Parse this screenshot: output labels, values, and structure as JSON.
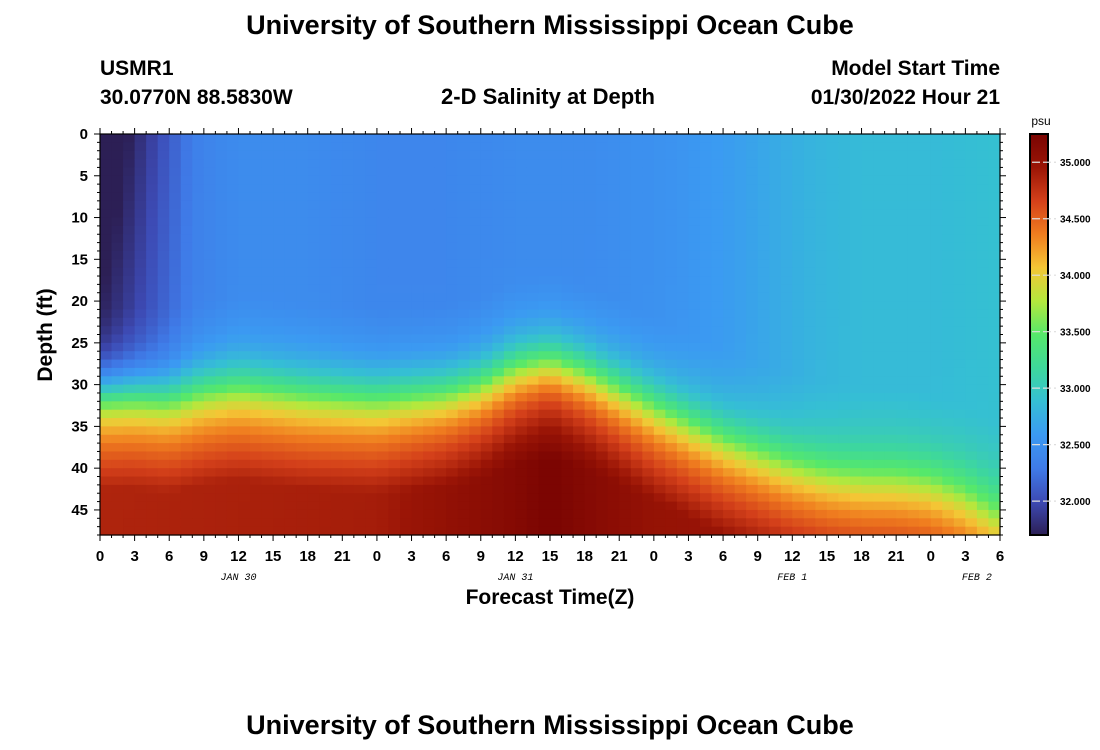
{
  "header": {
    "title": "University of Southern Mississippi Ocean Cube",
    "station_id": "USMR1",
    "coordinates": "30.0770N  88.5830W",
    "subtitle": "2-D Salinity at Depth",
    "model_start_label": "Model Start Time",
    "model_start_value": "01/30/2022 Hour 21"
  },
  "footer": {
    "title": "University of Southern Mississippi Ocean Cube"
  },
  "colors": {
    "ramp": [
      "#2c1f55",
      "#3d4ab4",
      "#3f7be8",
      "#3b9af2",
      "#35bfd4",
      "#3ed89b",
      "#56e86a",
      "#b4e83d",
      "#f4c635",
      "#f07d1f",
      "#d4401a",
      "#9a1506",
      "#7a0402"
    ]
  },
  "chart_data": {
    "type": "heatmap",
    "title": "2-D Salinity at Depth",
    "xlabel": "Forecast Time(Z)",
    "ylabel": "Depth (ft)",
    "x_range_hours": [
      0,
      78
    ],
    "y_range_ft": [
      0,
      48
    ],
    "x_ticks": [
      {
        "hour": 0,
        "label": "0"
      },
      {
        "hour": 3,
        "label": "3"
      },
      {
        "hour": 6,
        "label": "6"
      },
      {
        "hour": 9,
        "label": "9"
      },
      {
        "hour": 12,
        "label": "12"
      },
      {
        "hour": 15,
        "label": "15"
      },
      {
        "hour": 18,
        "label": "18"
      },
      {
        "hour": 21,
        "label": "21"
      },
      {
        "hour": 24,
        "label": "0"
      },
      {
        "hour": 27,
        "label": "3"
      },
      {
        "hour": 30,
        "label": "6"
      },
      {
        "hour": 33,
        "label": "9"
      },
      {
        "hour": 36,
        "label": "12"
      },
      {
        "hour": 39,
        "label": "15"
      },
      {
        "hour": 42,
        "label": "18"
      },
      {
        "hour": 45,
        "label": "21"
      },
      {
        "hour": 48,
        "label": "0"
      },
      {
        "hour": 51,
        "label": "3"
      },
      {
        "hour": 54,
        "label": "6"
      },
      {
        "hour": 57,
        "label": "9"
      },
      {
        "hour": 60,
        "label": "12"
      },
      {
        "hour": 63,
        "label": "15"
      },
      {
        "hour": 66,
        "label": "18"
      },
      {
        "hour": 69,
        "label": "21"
      },
      {
        "hour": 72,
        "label": "0"
      },
      {
        "hour": 75,
        "label": "3"
      },
      {
        "hour": 78,
        "label": "6"
      }
    ],
    "y_ticks": [
      {
        "depth": 0,
        "label": "0"
      },
      {
        "depth": 5,
        "label": "5"
      },
      {
        "depth": 10,
        "label": "10"
      },
      {
        "depth": 15,
        "label": "15"
      },
      {
        "depth": 20,
        "label": "20"
      },
      {
        "depth": 25,
        "label": "25"
      },
      {
        "depth": 30,
        "label": "30"
      },
      {
        "depth": 35,
        "label": "35"
      },
      {
        "depth": 40,
        "label": "40"
      },
      {
        "depth": 45,
        "label": "45"
      }
    ],
    "date_labels": [
      {
        "hour": 12,
        "label": "JAN 30"
      },
      {
        "hour": 36,
        "label": "JAN 31"
      },
      {
        "hour": 60,
        "label": "FEB 1"
      },
      {
        "hour": 76,
        "label": "FEB 2"
      }
    ],
    "colorbar": {
      "unit": "psu",
      "min": 31.7,
      "max": 35.25,
      "ticks": [
        {
          "value": 32.0,
          "label": "32.000"
        },
        {
          "value": 32.5,
          "label": "32.500"
        },
        {
          "value": 33.0,
          "label": "33.000"
        },
        {
          "value": 33.5,
          "label": "33.500"
        },
        {
          "value": 34.0,
          "label": "34.000"
        },
        {
          "value": 34.5,
          "label": "34.500"
        },
        {
          "value": 35.0,
          "label": "35.000"
        }
      ]
    },
    "field_model": {
      "description": "Approximate salinity (psu) field: fresher upper layer, saline bottom layer, halocline depth varying with forecast hour",
      "upper_salinity_hours": [
        0,
        2,
        5,
        8,
        12,
        18,
        24,
        30,
        36,
        42,
        48,
        54,
        58,
        62,
        66,
        72,
        78
      ],
      "upper_salinity_values": [
        31.7,
        31.85,
        32.1,
        32.35,
        32.45,
        32.45,
        32.4,
        32.4,
        32.45,
        32.45,
        32.5,
        32.6,
        32.7,
        32.8,
        32.85,
        32.85,
        32.9
      ],
      "halocline_hours": [
        0,
        3,
        6,
        9,
        12,
        18,
        24,
        30,
        33,
        36,
        39,
        42,
        45,
        48,
        51,
        54,
        57,
        60,
        63,
        66,
        69,
        72,
        75,
        78
      ],
      "halocline_depth_ft": [
        30.5,
        30.5,
        31.0,
        30.0,
        29.5,
        30.5,
        31.0,
        30.5,
        29.5,
        27.5,
        26.8,
        28.0,
        30.0,
        32.0,
        34.0,
        36.0,
        37.5,
        39.0,
        40.0,
        40.5,
        40.5,
        41.0,
        42.5,
        45.0
      ],
      "bottom_salinity_hours": [
        0,
        24,
        36,
        39,
        42,
        48,
        60,
        72,
        78
      ],
      "bottom_salinity_values": [
        34.85,
        34.9,
        35.15,
        35.25,
        35.15,
        35.0,
        34.95,
        34.9,
        34.85
      ],
      "halocline_thickness_ft": 4.0
    }
  }
}
